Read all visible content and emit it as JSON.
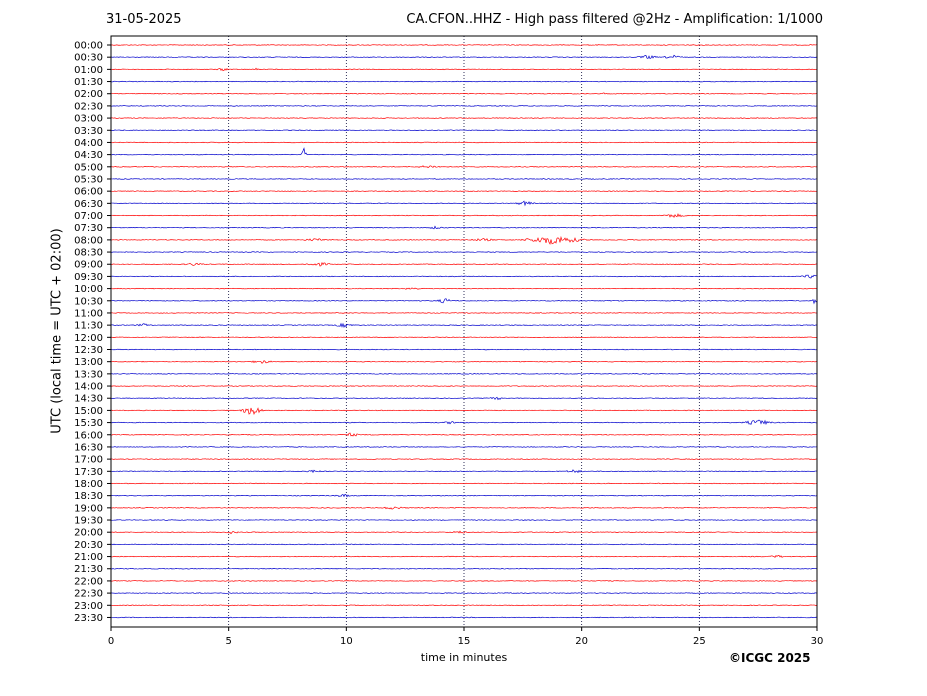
{
  "header": {
    "date": "31-05-2025",
    "title": "CA.CFON..HHZ - High pass filtered @2Hz - Amplification: 1/1000"
  },
  "footer": {
    "copyright": "©ICGC 2025"
  },
  "chart_data": {
    "type": "line",
    "title": "CA.CFON..HHZ - High pass filtered @2Hz - Amplification: 1/1000",
    "xlabel": "time in minutes",
    "ylabel": "UTC (local time = UTC + 02:00)",
    "xlim": [
      0,
      30
    ],
    "xticks": [
      0,
      5,
      10,
      15,
      20,
      25,
      30
    ],
    "yticks": [
      "00:00",
      "00:30",
      "01:00",
      "01:30",
      "02:00",
      "02:30",
      "03:00",
      "03:30",
      "04:00",
      "04:30",
      "05:00",
      "05:30",
      "06:00",
      "06:30",
      "07:00",
      "07:30",
      "08:00",
      "08:30",
      "09:00",
      "09:30",
      "10:00",
      "10:30",
      "11:00",
      "11:30",
      "12:00",
      "12:30",
      "13:00",
      "13:30",
      "14:00",
      "14:30",
      "15:00",
      "15:30",
      "16:00",
      "16:30",
      "17:00",
      "17:30",
      "18:00",
      "18:30",
      "19:00",
      "19:30",
      "20:00",
      "20:30",
      "21:00",
      "21:30",
      "22:00",
      "22:30",
      "23:00",
      "23:30"
    ],
    "trace_colors": [
      "#ff0000",
      "#0000cc"
    ],
    "vertical_grid": "dotted",
    "events": [
      {
        "row": "00:30",
        "minute": 22.8,
        "amp": 2,
        "width": 0.6
      },
      {
        "row": "00:30",
        "minute": 23.9,
        "amp": 2,
        "width": 0.6
      },
      {
        "row": "01:00",
        "minute": 4.8,
        "amp": 1.5,
        "width": 0.5
      },
      {
        "row": "01:00",
        "minute": 6.2,
        "amp": 2,
        "width": 0.1
      },
      {
        "row": "01:30",
        "minute": 7.9,
        "amp": 2,
        "width": 0.1
      },
      {
        "row": "02:00",
        "minute": 20.9,
        "amp": 2,
        "width": 0.1
      },
      {
        "row": "04:30",
        "minute": 8.2,
        "amp": 7,
        "width": 0.12
      },
      {
        "row": "05:00",
        "minute": 13.5,
        "amp": 1.5,
        "width": 0.8
      },
      {
        "row": "06:30",
        "minute": 17.6,
        "amp": 2.5,
        "width": 0.5
      },
      {
        "row": "07:00",
        "minute": 23.9,
        "amp": 2,
        "width": 0.8
      },
      {
        "row": "07:30",
        "minute": 13.8,
        "amp": 1.5,
        "width": 0.5
      },
      {
        "row": "08:00",
        "minute": 18.8,
        "amp": 4.5,
        "width": 1.6
      },
      {
        "row": "08:00",
        "minute": 8.7,
        "amp": 1.5,
        "width": 0.8
      },
      {
        "row": "08:00",
        "minute": 15.8,
        "amp": 1.5,
        "width": 0.8
      },
      {
        "row": "09:00",
        "minute": 8.8,
        "amp": 2,
        "width": 0.8
      },
      {
        "row": "09:00",
        "minute": 3.5,
        "amp": 1.5,
        "width": 0.6
      },
      {
        "row": "09:30",
        "minute": 29.7,
        "amp": 2,
        "width": 0.5
      },
      {
        "row": "10:00",
        "minute": 12.8,
        "amp": 1.5,
        "width": 0.6
      },
      {
        "row": "10:30",
        "minute": 14.2,
        "amp": 2.5,
        "width": 0.5
      },
      {
        "row": "10:30",
        "minute": 29.9,
        "amp": 4,
        "width": 0.1
      },
      {
        "row": "11:30",
        "minute": 9.9,
        "amp": 2,
        "width": 0.6
      },
      {
        "row": "11:30",
        "minute": 1.4,
        "amp": 1.5,
        "width": 0.5
      },
      {
        "row": "13:00",
        "minute": 6.4,
        "amp": 2,
        "width": 0.6
      },
      {
        "row": "14:30",
        "minute": 16.4,
        "amp": 1.5,
        "width": 0.5
      },
      {
        "row": "15:00",
        "minute": 6.0,
        "amp": 5,
        "width": 0.6
      },
      {
        "row": "15:30",
        "minute": 27.5,
        "amp": 3,
        "width": 0.8
      },
      {
        "row": "15:30",
        "minute": 14.5,
        "amp": 1.5,
        "width": 0.6
      },
      {
        "row": "16:00",
        "minute": 10.2,
        "amp": 2,
        "width": 0.5
      },
      {
        "row": "17:30",
        "minute": 19.7,
        "amp": 2,
        "width": 0.5
      },
      {
        "row": "17:30",
        "minute": 8.6,
        "amp": 1.5,
        "width": 0.5
      },
      {
        "row": "18:30",
        "minute": 9.9,
        "amp": 1.5,
        "width": 0.6
      },
      {
        "row": "19:00",
        "minute": 12.0,
        "amp": 1.5,
        "width": 0.8
      },
      {
        "row": "20:00",
        "minute": 5.1,
        "amp": 1.5,
        "width": 0.5
      },
      {
        "row": "20:00",
        "minute": 14.8,
        "amp": 1.5,
        "width": 0.5
      },
      {
        "row": "21:00",
        "minute": 28.3,
        "amp": 1.5,
        "width": 0.5
      }
    ]
  }
}
